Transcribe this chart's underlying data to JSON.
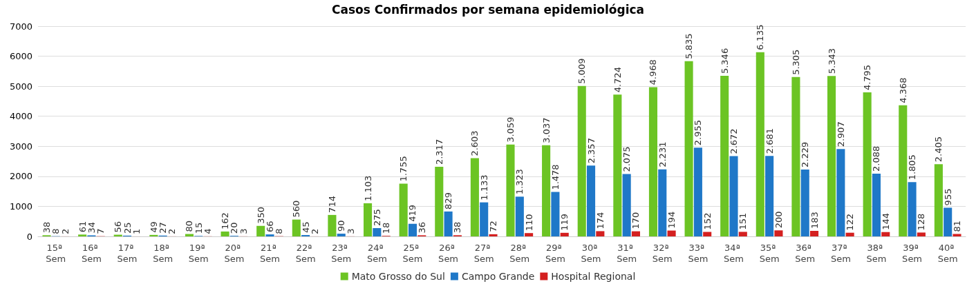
{
  "chart_data": {
    "type": "bar",
    "title": "Casos Confirmados por semana epidemiológica",
    "categories": [
      "15ª Sem",
      "16ª Sem",
      "17ª Sem",
      "18ª Sem",
      "19ª Sem",
      "20ª Sem",
      "21ª Sem",
      "22ª Sem",
      "23ª Sem",
      "24ª Sem",
      "25ª Sem",
      "26ª Sem",
      "27ª Sem",
      "28ª Sem",
      "29ª Sem",
      "30ª Sem",
      "31ª Sem",
      "32ª Sem",
      "33ª Sem",
      "34ª Sem",
      "35ª Sem",
      "36ª Sem",
      "37ª Sem",
      "38ª Sem",
      "39ª Sem",
      "40ª Sem"
    ],
    "series": [
      {
        "name": "Mato Grosso do Sul",
        "color": "#6cc424",
        "values": [
          38,
          61,
          56,
          49,
          80,
          162,
          350,
          560,
          714,
          1103,
          1755,
          2317,
          2603,
          3059,
          3037,
          5009,
          4724,
          4968,
          5835,
          5346,
          6135,
          5305,
          5343,
          4795,
          4368,
          2405
        ],
        "value_labels": [
          "38",
          "61",
          "56",
          "49",
          "80",
          "162",
          "350",
          "560",
          "714",
          "1.103",
          "1.755",
          "2.317",
          "2.603",
          "3.059",
          "3.037",
          "5.009",
          "4.724",
          "4.968",
          "5.835",
          "5.346",
          "6.135",
          "5.305",
          "5.343",
          "4.795",
          "4.368",
          "2.405"
        ]
      },
      {
        "name": "Campo Grande",
        "color": "#1f78c8",
        "values": [
          8,
          34,
          25,
          27,
          15,
          20,
          66,
          45,
          90,
          275,
          419,
          829,
          1133,
          1323,
          1478,
          2357,
          2075,
          2231,
          2955,
          2672,
          2681,
          2229,
          2907,
          2088,
          1805,
          955
        ],
        "value_labels": [
          "8",
          "34",
          "25",
          "27",
          "15",
          "20",
          "66",
          "45",
          "90",
          "275",
          "419",
          "829",
          "1.133",
          "1.323",
          "1.478",
          "2.357",
          "2.075",
          "2.231",
          "2.955",
          "2.672",
          "2.681",
          "2.229",
          "2.907",
          "2.088",
          "1.805",
          "955"
        ]
      },
      {
        "name": "Hospital Regional",
        "color": "#d42020",
        "values": [
          2,
          7,
          1,
          2,
          4,
          3,
          8,
          2,
          3,
          18,
          36,
          38,
          72,
          110,
          119,
          174,
          170,
          194,
          152,
          151,
          200,
          183,
          122,
          144,
          128,
          81
        ],
        "value_labels": [
          "2",
          "7",
          "1",
          "2",
          "4",
          "3",
          "8",
          "2",
          "3",
          "18",
          "36",
          "38",
          "72",
          "110",
          "119",
          "174",
          "170",
          "194",
          "152",
          "151",
          "200",
          "183",
          "122",
          "144",
          "128",
          "81"
        ]
      }
    ],
    "ylim": [
      0,
      7000
    ],
    "yticks": [
      0,
      1000,
      2000,
      3000,
      4000,
      5000,
      6000,
      7000
    ],
    "grid": "y",
    "legend": "bottom"
  }
}
